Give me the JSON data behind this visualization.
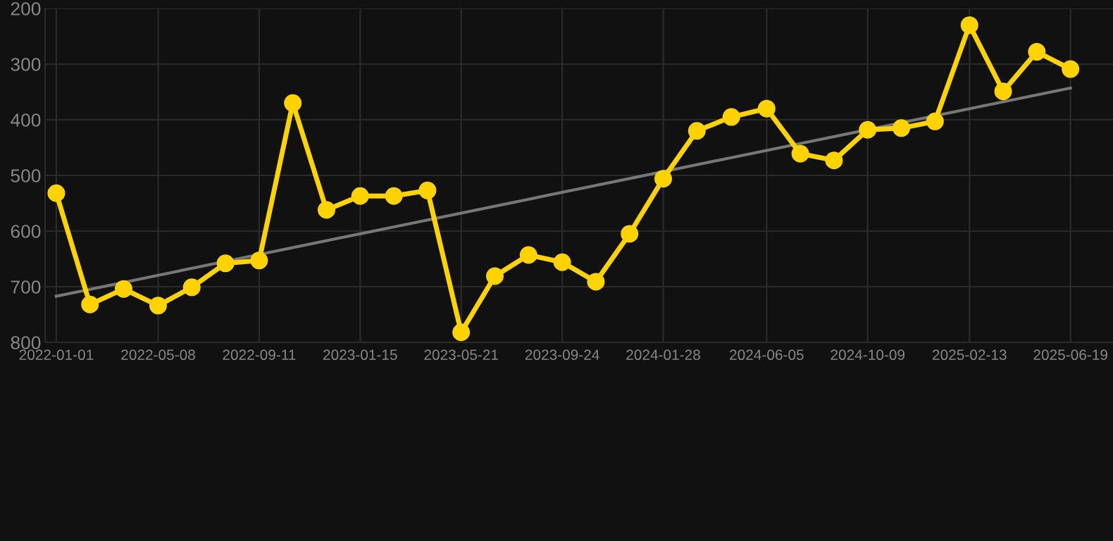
{
  "chart_data": {
    "type": "line",
    "x": [
      "2022-01-01",
      "2022-02-12",
      "2022-03-26",
      "2022-05-08",
      "2022-06-19",
      "2022-07-31",
      "2022-09-11",
      "2022-10-23",
      "2022-12-04",
      "2023-01-15",
      "2023-02-26",
      "2023-04-09",
      "2023-05-21",
      "2023-07-02",
      "2023-08-13",
      "2023-09-24",
      "2023-11-05",
      "2023-12-17",
      "2024-01-28",
      "2024-03-10",
      "2024-04-22",
      "2024-06-05",
      "2024-07-17",
      "2024-08-28",
      "2024-10-09",
      "2024-11-20",
      "2025-01-01",
      "2025-02-13",
      "2025-03-27",
      "2025-05-08",
      "2025-06-19"
    ],
    "series": [
      {
        "color": "#ffd200",
        "marker": "circle",
        "values": [
          532,
          732,
          704,
          734,
          701,
          658,
          653,
          370,
          562,
          537,
          537,
          527,
          782,
          681,
          643,
          656,
          691,
          605,
          506,
          420,
          395,
          380,
          461,
          473,
          418,
          415,
          403,
          230,
          349,
          278,
          309
        ]
      },
      {
        "type": "line",
        "color": "#777777",
        "marker": "none",
        "x": [
          "2022-01-01",
          "2025-06-19"
        ],
        "values": [
          717,
          343
        ]
      }
    ],
    "xlim": [
      "2021-12-18",
      "2025-08-11"
    ],
    "xticks": [
      {
        "value": "2022-01-01",
        "label": "2022-01-01"
      },
      {
        "value": "2022-05-08",
        "label": "2022-05-08"
      },
      {
        "value": "2022-09-11",
        "label": "2022-09-11"
      },
      {
        "value": "2023-01-15",
        "label": "2023-01-15"
      },
      {
        "value": "2023-05-21",
        "label": "2023-05-21"
      },
      {
        "value": "2023-09-24",
        "label": "2023-09-24"
      },
      {
        "value": "2024-01-28",
        "label": "2024-01-28"
      },
      {
        "value": "2024-06-05",
        "label": "2024-06-05"
      },
      {
        "value": "2024-10-09",
        "label": "2024-10-09"
      },
      {
        "value": "2025-02-13",
        "label": "2025-02-13"
      },
      {
        "value": "2025-06-19",
        "label": "2025-06-19"
      }
    ],
    "ylim": [
      800,
      200
    ],
    "yticks": [
      200,
      300,
      400,
      500,
      600,
      700,
      800
    ],
    "grid": true,
    "line_style": "solid"
  }
}
